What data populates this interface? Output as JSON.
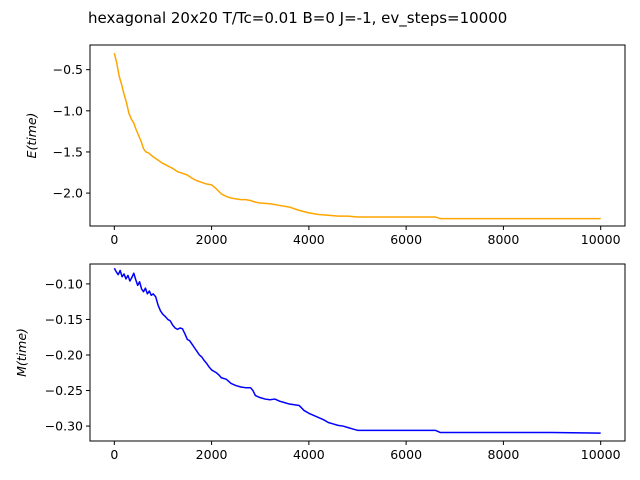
{
  "figure": {
    "title": "hexagonal 20x20 T/Tc=0.01 B=0 J=-1, ev_steps=10000"
  },
  "chart_data": [
    {
      "type": "line",
      "ylabel": "E(time)",
      "xlabel": "",
      "xlim": [
        -500,
        10500
      ],
      "ylim": [
        -2.4,
        -0.2
      ],
      "xticks": [
        0,
        2000,
        4000,
        6000,
        8000,
        10000
      ],
      "xtick_labels": [
        "0",
        "2000",
        "4000",
        "6000",
        "8000",
        "10000"
      ],
      "yticks": [
        -0.5,
        -1.0,
        -1.5,
        -2.0
      ],
      "ytick_labels": [
        "−0.5",
        "−1.0",
        "−1.5",
        "−2.0"
      ],
      "grid": false,
      "series": [
        {
          "color": "#ffa500",
          "x": [
            0,
            50,
            100,
            150,
            200,
            250,
            300,
            350,
            400,
            450,
            500,
            550,
            600,
            650,
            700,
            800,
            900,
            1000,
            1100,
            1200,
            1300,
            1400,
            1500,
            1600,
            1700,
            1800,
            1900,
            2000,
            2100,
            2200,
            2300,
            2400,
            2500,
            2600,
            2700,
            2800,
            2900,
            3000,
            3200,
            3400,
            3600,
            3800,
            4000,
            4200,
            4400,
            4600,
            4800,
            5000,
            5500,
            6000,
            6600,
            6700,
            7000,
            8000,
            9000,
            10000
          ],
          "y": [
            -0.3,
            -0.42,
            -0.58,
            -0.68,
            -0.8,
            -0.9,
            -1.03,
            -1.1,
            -1.15,
            -1.23,
            -1.3,
            -1.37,
            -1.46,
            -1.5,
            -1.51,
            -1.56,
            -1.6,
            -1.64,
            -1.67,
            -1.7,
            -1.74,
            -1.76,
            -1.78,
            -1.82,
            -1.85,
            -1.87,
            -1.89,
            -1.9,
            -1.95,
            -2.01,
            -2.04,
            -2.06,
            -2.07,
            -2.08,
            -2.08,
            -2.09,
            -2.11,
            -2.12,
            -2.13,
            -2.15,
            -2.17,
            -2.21,
            -2.24,
            -2.26,
            -2.27,
            -2.28,
            -2.28,
            -2.29,
            -2.29,
            -2.29,
            -2.29,
            -2.31,
            -2.31,
            -2.31,
            -2.31,
            -2.31
          ]
        }
      ]
    },
    {
      "type": "line",
      "ylabel": "M(time)",
      "xlabel": "",
      "xlim": [
        -500,
        10500
      ],
      "ylim": [
        -0.321,
        -0.072
      ],
      "xticks": [
        0,
        2000,
        4000,
        6000,
        8000,
        10000
      ],
      "xtick_labels": [
        "0",
        "2000",
        "4000",
        "6000",
        "8000",
        "10000"
      ],
      "yticks": [
        -0.1,
        -0.15,
        -0.2,
        -0.25,
        -0.3
      ],
      "ytick_labels": [
        "−0.10",
        "−0.15",
        "−0.20",
        "−0.25",
        "−0.30"
      ],
      "grid": false,
      "series": [
        {
          "color": "#0000ff",
          "x": [
            0,
            40,
            80,
            120,
            160,
            200,
            240,
            280,
            320,
            360,
            400,
            440,
            480,
            520,
            560,
            600,
            640,
            680,
            720,
            760,
            800,
            850,
            900,
            950,
            1000,
            1050,
            1100,
            1150,
            1200,
            1250,
            1300,
            1350,
            1400,
            1450,
            1500,
            1550,
            1600,
            1650,
            1700,
            1750,
            1800,
            1850,
            1900,
            1950,
            2000,
            2050,
            2100,
            2150,
            2200,
            2300,
            2400,
            2500,
            2600,
            2700,
            2800,
            2850,
            2900,
            3000,
            3100,
            3200,
            3300,
            3400,
            3500,
            3600,
            3700,
            3800,
            3900,
            4000,
            4100,
            4200,
            4300,
            4400,
            4500,
            4600,
            4700,
            4800,
            4900,
            5000,
            5500,
            6000,
            6600,
            6700,
            7000,
            8000,
            9000,
            10000
          ],
          "y": [
            -0.078,
            -0.083,
            -0.087,
            -0.081,
            -0.09,
            -0.086,
            -0.093,
            -0.088,
            -0.096,
            -0.091,
            -0.085,
            -0.094,
            -0.102,
            -0.097,
            -0.107,
            -0.111,
            -0.106,
            -0.114,
            -0.11,
            -0.116,
            -0.114,
            -0.118,
            -0.13,
            -0.138,
            -0.143,
            -0.146,
            -0.15,
            -0.152,
            -0.158,
            -0.162,
            -0.164,
            -0.162,
            -0.163,
            -0.17,
            -0.178,
            -0.18,
            -0.185,
            -0.19,
            -0.195,
            -0.2,
            -0.203,
            -0.208,
            -0.212,
            -0.217,
            -0.221,
            -0.223,
            -0.225,
            -0.228,
            -0.232,
            -0.234,
            -0.24,
            -0.243,
            -0.245,
            -0.246,
            -0.246,
            -0.25,
            -0.257,
            -0.26,
            -0.262,
            -0.263,
            -0.262,
            -0.265,
            -0.267,
            -0.269,
            -0.27,
            -0.271,
            -0.278,
            -0.282,
            -0.285,
            -0.288,
            -0.291,
            -0.295,
            -0.297,
            -0.299,
            -0.3,
            -0.302,
            -0.304,
            -0.306,
            -0.306,
            -0.306,
            -0.306,
            -0.309,
            -0.309,
            -0.309,
            -0.309,
            -0.31
          ]
        }
      ]
    }
  ]
}
